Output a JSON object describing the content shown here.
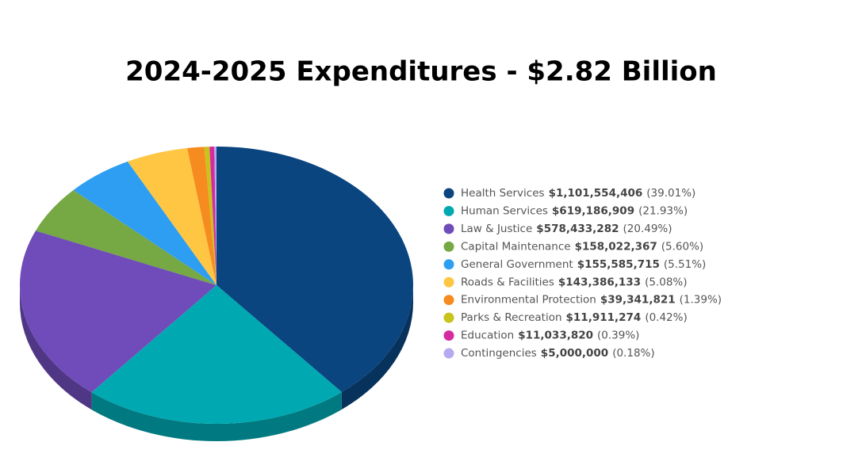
{
  "chart_data": {
    "type": "pie",
    "title": "2024-2025 Expenditures - $2.82 Billion",
    "categories": [
      "Health Services",
      "Human Services",
      "Law & Justice",
      "Capital Maintenance",
      "General Government",
      "Roads & Facilities",
      "Environmental Protection",
      "Parks & Recreation",
      "Education",
      "Contingencies"
    ],
    "values": [
      1101554406,
      619186909,
      578433282,
      158022367,
      155585715,
      143386133,
      39341821,
      11911274,
      11033820,
      5000000
    ],
    "value_labels": [
      "$1,101,554,406",
      "$619,186,909",
      "$578,433,282",
      "$158,022,367",
      "$155,585,715",
      "$143,386,133",
      "$39,341,821",
      "$11,911,274",
      "$11,033,820",
      "$5,000,000"
    ],
    "share_labels": [
      "(39.01%)",
      "(21.93%)",
      "(20.49%)",
      "(5.60%)",
      "(5.51%)",
      "(5.08%)",
      "(1.39%)",
      "(0.42%)",
      "(0.39%)",
      "(0.18%)"
    ],
    "colors": [
      "#0a4580",
      "#00a9b2",
      "#6f4cb9",
      "#76a844",
      "#2e9ef2",
      "#ffc643",
      "#f68b20",
      "#c8c41c",
      "#d42c9e",
      "#b3aaf2"
    ],
    "legend": "right"
  }
}
